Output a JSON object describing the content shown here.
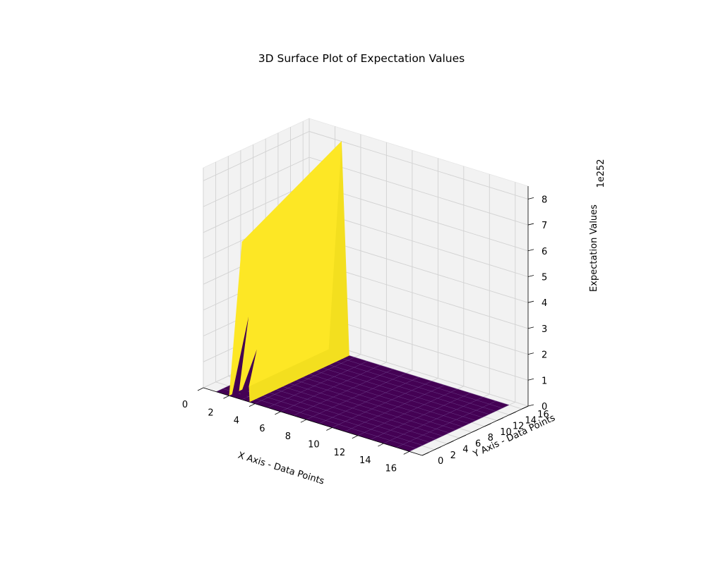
{
  "chart_data": {
    "type": "surface3d",
    "title": "3D Surface Plot of Expectation Values",
    "xlabel": "X Axis - Data Points",
    "ylabel": "Y Axis - Data Points",
    "zlabel": "Expectation Values",
    "z_offset_label": "1e252",
    "xlim": [
      0,
      17
    ],
    "ylim": [
      0,
      17
    ],
    "zlim": [
      0,
      8.5
    ],
    "x_ticks": [
      0,
      2,
      4,
      6,
      8,
      10,
      12,
      14,
      16
    ],
    "y_ticks": [
      0,
      2,
      4,
      6,
      8,
      10,
      12,
      14,
      16
    ],
    "z_ticks": [
      0,
      1,
      2,
      3,
      4,
      5,
      6,
      7,
      8
    ],
    "grid": true,
    "colormap": "viridis",
    "colors": {
      "low": "#440154",
      "high": "#fde725",
      "pane": "#f2f2f2",
      "grid": "#d2d2d2"
    },
    "surface": {
      "x_range": [
        1,
        16
      ],
      "y_range": [
        0,
        16
      ],
      "grid_cells": 15,
      "baseline_value": 0,
      "ridge": {
        "x_from": 2,
        "x_to": 3,
        "peak_x": 3,
        "z_at_y_min": 6.1,
        "z_at_y_max": 8.2,
        "note_units": "1e252"
      }
    }
  }
}
